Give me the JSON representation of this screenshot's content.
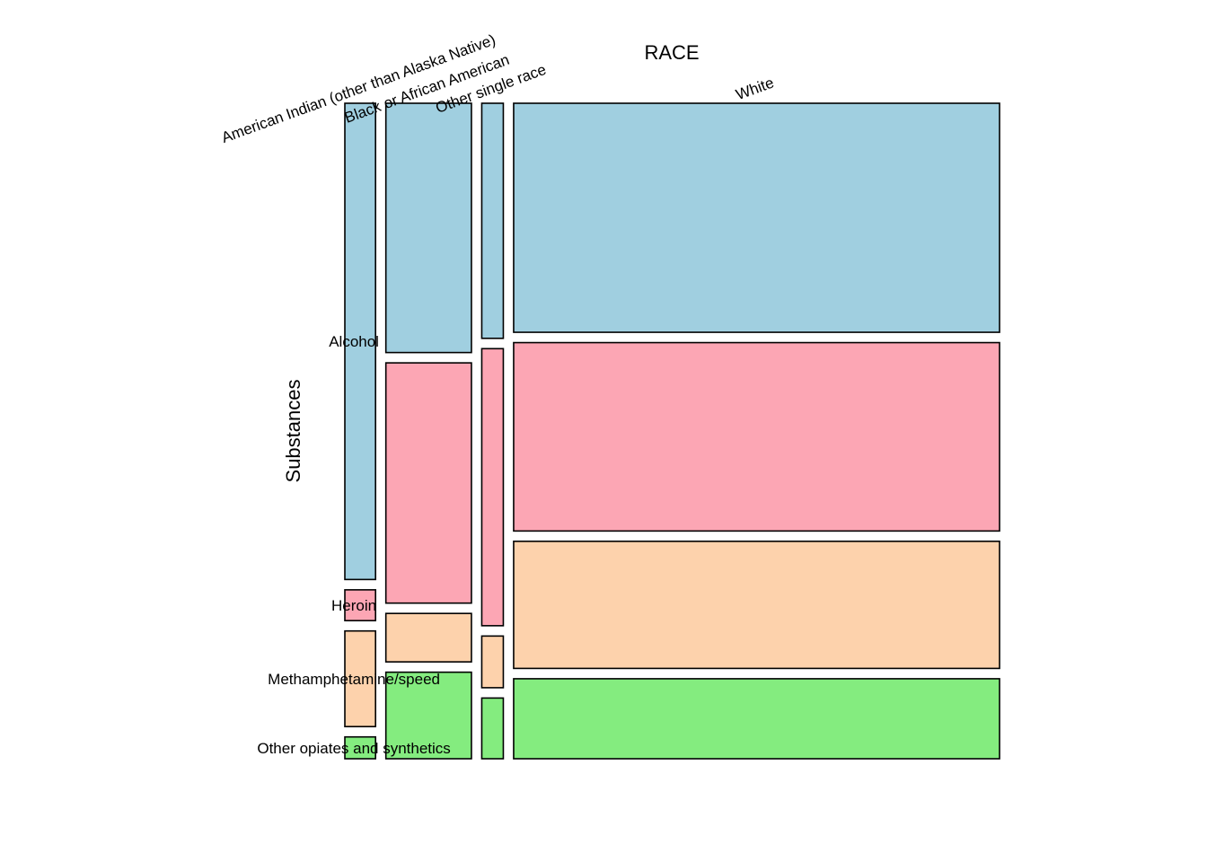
{
  "chart_data": {
    "type": "mosaic",
    "title": "",
    "xlabel": "RACE",
    "ylabel": "Substances",
    "x_categories": [
      "American Indian (other than Alaska Native)",
      "Black or African American",
      "Other single race",
      "White"
    ],
    "x_proportions": [
      0.047,
      0.131,
      0.033,
      0.744
    ],
    "y_categories": [
      "Alcohol",
      "Heroin",
      "Methamphetamine/speed",
      "Other opiates and synthetics"
    ],
    "colors": [
      "#a0cfe0",
      "#fca6b4",
      "#fdd2ac",
      "#84ec7f"
    ],
    "segments": [
      {
        "race": "American Indian (other than Alaska Native)",
        "proportions": [
          0.742,
          0.048,
          0.149,
          0.034
        ]
      },
      {
        "race": "Black or African American",
        "proportions": [
          0.386,
          0.372,
          0.075,
          0.134
        ]
      },
      {
        "race": "Other single race",
        "proportions": [
          0.364,
          0.429,
          0.08,
          0.094
        ]
      },
      {
        "race": "White",
        "proportions": [
          0.355,
          0.292,
          0.197,
          0.124
        ]
      }
    ],
    "legend": "none"
  }
}
